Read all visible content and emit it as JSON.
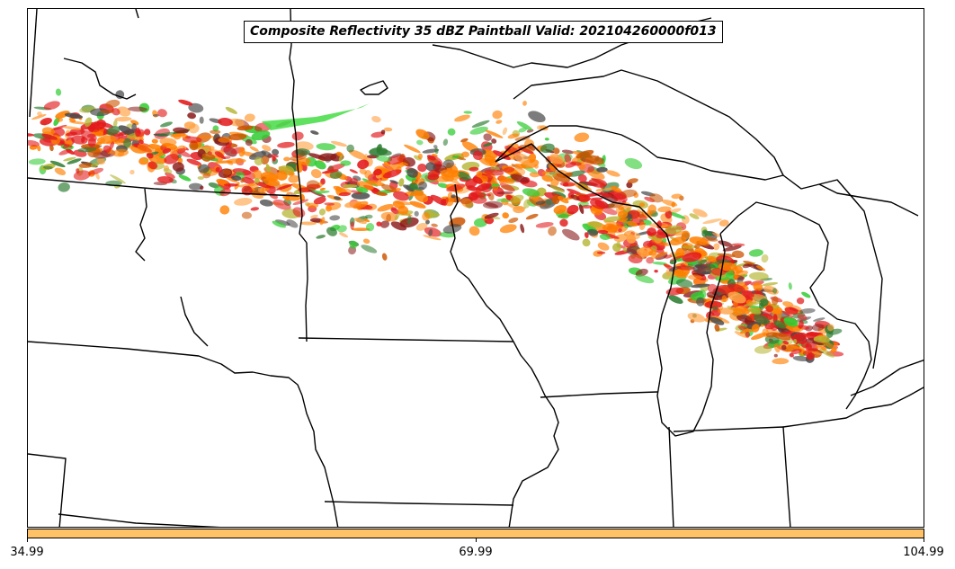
{
  "title": "Composite Reflectivity 35 dBZ Paintball Valid: 202104260000f013",
  "colorbar": {
    "color": "#ffc266",
    "ticks": [
      "34.99",
      "69.99",
      "104.99"
    ]
  },
  "member_colors": [
    "#e31a1c",
    "#ff7f00",
    "#33cc33",
    "#2e7d32",
    "#b5b533",
    "#8b1a1a",
    "#4a4a4a",
    "#ffa040",
    "#cc5500"
  ],
  "chart_data": {
    "type": "map",
    "map_type": "paintball",
    "field": "Composite Reflectivity",
    "threshold_dbz": 35,
    "valid_time": "202104260000f013",
    "colorbar_range": [
      34.99,
      104.99
    ],
    "colorbar_ticks": [
      34.99,
      69.99,
      104.99
    ]
  }
}
